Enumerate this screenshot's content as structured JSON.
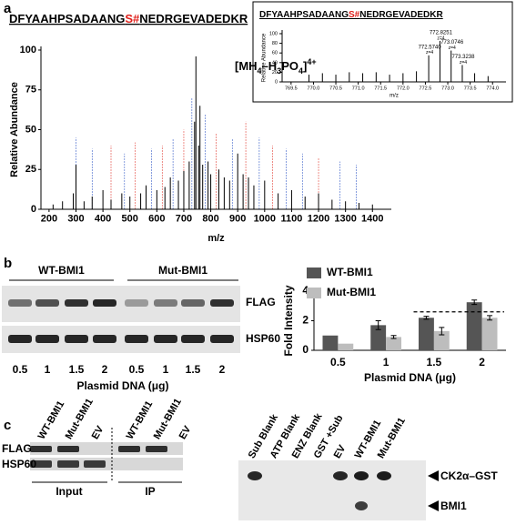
{
  "panel_labels": [
    "a",
    "b",
    "c"
  ],
  "chart_data": [
    {
      "type": "spectrum",
      "sequence": [
        "DFYAAHPSADAANG",
        "S#",
        "NEDRGEVADEDKR"
      ],
      "annotation": [
        "[MH",
        "4",
        "–H",
        "3",
        "PO",
        "4",
        "]",
        "4+"
      ],
      "y_label": "Relative Abundance",
      "x_label": "m/z",
      "color": "#000000",
      "x": [
        215,
        250,
        290,
        300,
        330,
        360,
        400,
        430,
        470,
        500,
        540,
        560,
        600,
        630,
        650,
        680,
        700,
        720,
        740,
        745,
        755,
        760,
        770,
        790,
        800,
        830,
        850,
        870,
        900,
        920,
        940,
        960,
        1000,
        1050,
        1100,
        1150,
        1200,
        1250,
        1300,
        1350,
        1400
      ],
      "values": [
        3,
        5,
        10,
        28,
        5,
        8,
        12,
        6,
        10,
        8,
        10,
        15,
        12,
        14,
        20,
        18,
        24,
        30,
        55,
        96,
        40,
        65,
        28,
        30,
        22,
        25,
        20,
        18,
        35,
        22,
        20,
        15,
        18,
        10,
        12,
        8,
        10,
        6,
        5,
        4,
        3
      ],
      "xlim": [
        170,
        1470
      ],
      "xticks": [
        200,
        300,
        400,
        500,
        600,
        700,
        800,
        900,
        1000,
        1100,
        1200,
        1300,
        1400
      ],
      "ylim": [
        0,
        100
      ],
      "yticks": [
        0,
        25,
        50,
        75,
        100
      ]
    },
    {
      "type": "spectrum",
      "sequence": [
        "DFYAAHPSADAANG",
        "S#",
        "NEDRGEVADEDKR"
      ],
      "y_label": "Relative Abundance",
      "x_label": "m/z",
      "color": "#000000",
      "x": [
        769.9,
        770.2,
        770.5,
        770.8,
        771.1,
        771.4,
        771.7,
        772.0,
        772.3,
        772.574,
        772.8251,
        773.0746,
        773.3238,
        773.6,
        773.9
      ],
      "values": [
        15,
        18,
        15,
        20,
        18,
        20,
        15,
        18,
        22,
        55,
        85,
        65,
        35,
        18,
        12
      ],
      "x_labels": [
        null,
        null,
        null,
        null,
        null,
        null,
        null,
        null,
        null,
        "772.5740",
        "772.8251",
        "773.0746",
        "773.3238",
        null,
        null
      ],
      "charge_labels": [
        null,
        null,
        null,
        null,
        null,
        null,
        null,
        null,
        null,
        "z=4",
        "z=4",
        "z=4",
        "z=4",
        null,
        null
      ],
      "xlim": [
        769.3,
        774.3
      ],
      "xticks": [
        769.5,
        {
          "value": 770,
          "label": "770.0"
        },
        770.5,
        {
          "value": 771,
          "label": "771.0"
        },
        771.5,
        {
          "value": 772,
          "label": "772.0"
        },
        772.5,
        {
          "value": 773,
          "label": "773.0"
        },
        773.5,
        {
          "value": 774,
          "label": "774.0"
        }
      ],
      "ylim": [
        0,
        100
      ],
      "yticks": [
        0,
        20,
        40,
        60,
        80,
        100
      ]
    },
    {
      "type": "bar",
      "categories": [
        "0.5",
        "1",
        "1.5",
        "2"
      ],
      "series": [
        {
          "name": "WT-BMI1",
          "color": "#555555",
          "values": [
            1,
            1.7,
            2.2,
            3.25
          ],
          "errors": [
            0,
            0.3,
            0.1,
            0.15
          ]
        },
        {
          "name": "Mut-BMI1",
          "color": "#bdbdbd",
          "values": [
            0.45,
            0.9,
            1.3,
            2.2
          ],
          "errors": [
            0,
            0.1,
            0.25,
            0.15
          ]
        }
      ],
      "reference_line": 2.6,
      "y_label": "Fold Intensity",
      "x_label": "Plasmid DNA (μg)",
      "legend": "top-left",
      "ylim": [
        0,
        4
      ],
      "yticks": [
        0,
        2,
        4
      ]
    }
  ],
  "blot_b": {
    "groups": [
      "WT-BMI1",
      "Mut-BMI1"
    ],
    "rows": [
      "FLAG",
      "HSP60"
    ],
    "lanes": [
      "0.5",
      "1",
      "1.5",
      "2",
      "0.5",
      "1",
      "1.5",
      "2"
    ],
    "x_label": "Plasmid DNA (μg)"
  },
  "blot_c": {
    "lanes": [
      "WT-BMI1",
      "Mut-BMI1",
      "EV",
      "WT-BMI1",
      "Mut-BMI1",
      "EV"
    ],
    "rows": [
      "FLAG",
      "HSP60"
    ],
    "groups": [
      "Input",
      "IP"
    ]
  },
  "autorad_c": {
    "lanes": [
      "Sub Blank",
      "ATP Blank",
      "ENZ Blank",
      "GST +Sub",
      "EV",
      "WT-BMI1",
      "Mut-BMI1"
    ],
    "bands": [
      "CK2α–GST",
      "BMI1"
    ]
  }
}
